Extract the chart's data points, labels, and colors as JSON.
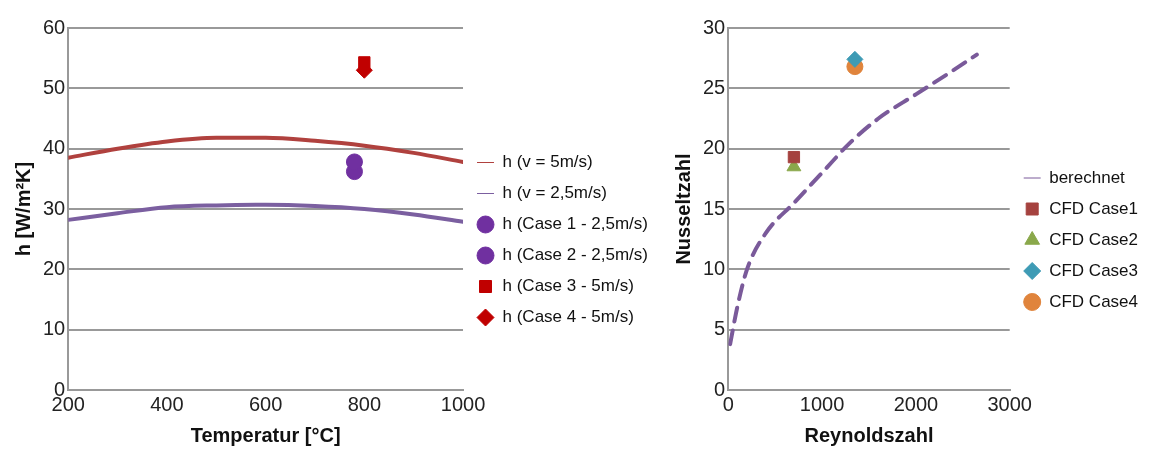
{
  "chart_data": [
    {
      "type": "scatter",
      "xlabel": "Temperatur [°C]",
      "ylabel": "h [W/m²K]",
      "xlim": [
        200,
        1000
      ],
      "xticks": [
        200,
        400,
        600,
        800,
        1000
      ],
      "ylim": [
        0,
        60
      ],
      "yticks": [
        0,
        10,
        20,
        30,
        40,
        50,
        60
      ],
      "grid": "y",
      "legend": "right",
      "series": [
        {
          "name": "h (v = 5m/s)",
          "type": "line",
          "color": "#b0413e",
          "marker": "none",
          "line_style": "solid",
          "x": [
            200,
            300,
            400,
            500,
            600,
            700,
            800,
            900,
            1000
          ],
          "values": [
            38.5,
            40,
            41.2,
            41.8,
            41.8,
            41.3,
            40.5,
            39.3,
            37.8
          ]
        },
        {
          "name": "h (v = 2,5m/s)",
          "type": "line",
          "color": "#7b5fa0",
          "marker": "none",
          "line_style": "solid",
          "x": [
            200,
            300,
            400,
            500,
            600,
            700,
            800,
            900,
            1000
          ],
          "values": [
            28.2,
            29.3,
            30.3,
            30.6,
            30.7,
            30.5,
            30,
            29.1,
            27.9
          ]
        },
        {
          "name": "h (Case 1 - 2,5m/s)",
          "type": "scatter",
          "color": "#7030a0",
          "marker": "circle",
          "x": [
            780
          ],
          "values": [
            37.8
          ]
        },
        {
          "name": "h (Case 2 - 2,5m/s)",
          "type": "scatter",
          "color": "#7030a0",
          "marker": "circle",
          "x": [
            780
          ],
          "values": [
            36.2
          ]
        },
        {
          "name": "h (Case 3 - 5m/s)",
          "type": "scatter",
          "color": "#c00000",
          "marker": "square",
          "x": [
            800
          ],
          "values": [
            54.3
          ]
        },
        {
          "name": "h (Case 4 - 5m/s)",
          "type": "scatter",
          "color": "#c00000",
          "marker": "diamond",
          "x": [
            800
          ],
          "values": [
            53
          ]
        }
      ]
    },
    {
      "type": "scatter",
      "xlabel": "Reynoldszahl",
      "ylabel": "Nusseltzahl",
      "xlim": [
        0,
        3000
      ],
      "xticks": [
        0,
        1000,
        2000,
        3000
      ],
      "ylim": [
        0,
        30
      ],
      "yticks": [
        0,
        5,
        10,
        15,
        20,
        25,
        30
      ],
      "grid": "y",
      "legend": "right",
      "series": [
        {
          "name": "berechnet",
          "type": "line",
          "color": "#7a5a9a",
          "marker": "none",
          "line_style": "dashed",
          "x": [
            20,
            100,
            200,
            400,
            700,
            1000,
            1300,
            1600,
            2000,
            2400,
            2650
          ],
          "values": [
            3.8,
            7,
            10,
            13,
            15.5,
            18,
            20.5,
            22.5,
            24.5,
            26.5,
            27.8
          ]
        },
        {
          "name": "CFD Case1",
          "type": "scatter",
          "color": "#a5423f",
          "marker": "square",
          "x": [
            700
          ],
          "values": [
            19.3
          ]
        },
        {
          "name": "CFD Case2",
          "type": "scatter",
          "color": "#8aa84b",
          "marker": "triangle",
          "x": [
            700
          ],
          "values": [
            18.5
          ]
        },
        {
          "name": "CFD Case3",
          "type": "scatter",
          "color": "#3e9bb5",
          "marker": "diamond",
          "x": [
            1350
          ],
          "values": [
            27.4
          ]
        },
        {
          "name": "CFD Case4",
          "type": "scatter",
          "color": "#e0843c",
          "marker": "circle",
          "x": [
            1350
          ],
          "values": [
            26.8
          ]
        }
      ]
    }
  ]
}
